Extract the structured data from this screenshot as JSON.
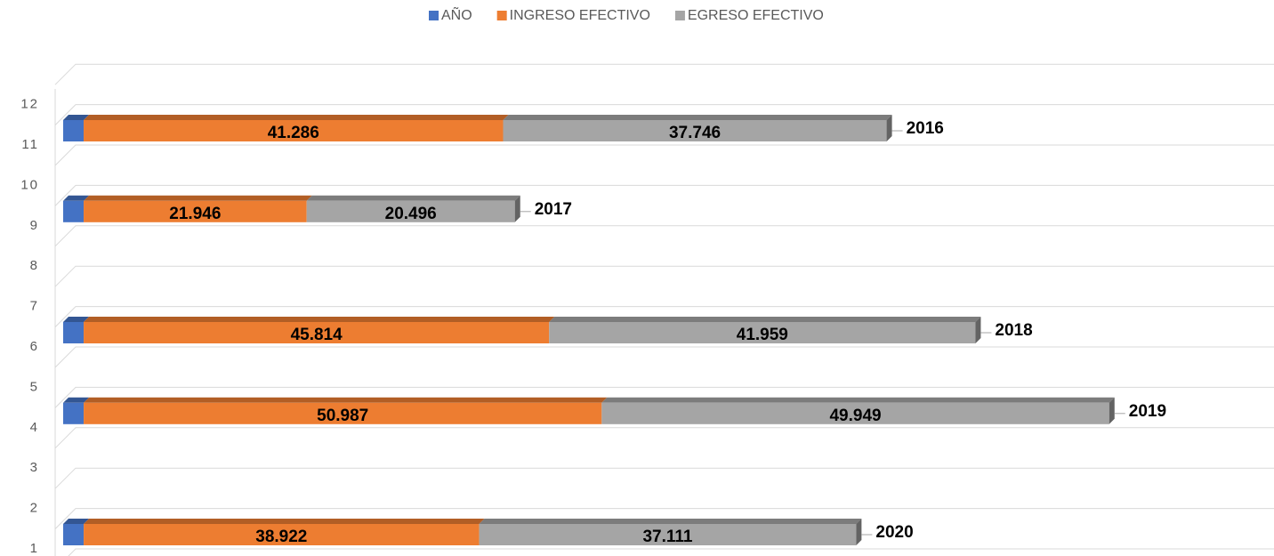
{
  "chart_data": {
    "type": "bar3d_stacked_horizontal",
    "categories": [
      "1",
      "2",
      "3",
      "4",
      "5",
      "6",
      "7",
      "8",
      "9",
      "10",
      "11",
      "12"
    ],
    "xlim": [
      0,
      119000
    ],
    "legend": "top",
    "series": [
      {
        "name": "AÑO",
        "color": "#4472c4",
        "values": [
          2020,
          null,
          null,
          2019,
          null,
          2018,
          null,
          null,
          2017,
          null,
          2016,
          null
        ]
      },
      {
        "name": "INGRESO EFECTIVO",
        "color": "#ed7d31",
        "values": [
          38922,
          null,
          null,
          50987,
          null,
          45814,
          null,
          null,
          21946,
          null,
          41286,
          null
        ],
        "value_labels": [
          "38.922",
          null,
          null,
          "50.987",
          null,
          "45.814",
          null,
          null,
          "21.946",
          null,
          "41.286",
          null
        ]
      },
      {
        "name": "EGRESO EFECTIVO",
        "color": "#a5a5a5",
        "values": [
          37111,
          null,
          null,
          49949,
          null,
          41959,
          null,
          null,
          20496,
          null,
          37746,
          null
        ],
        "value_labels": [
          "37.111",
          null,
          null,
          "49.949",
          null,
          "41.959",
          null,
          null,
          "20.496",
          null,
          "37.746",
          null
        ]
      }
    ]
  }
}
